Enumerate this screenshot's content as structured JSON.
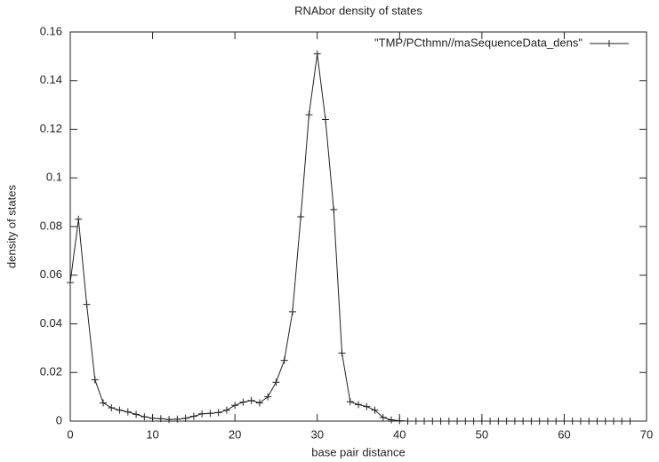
{
  "chart_data": {
    "type": "line",
    "title": "RNAbor density of states",
    "x_label": "base pair distance",
    "y_label": "density of states",
    "x": [
      0,
      1,
      2,
      3,
      4,
      5,
      6,
      7,
      8,
      9,
      10,
      11,
      12,
      13,
      14,
      15,
      16,
      17,
      18,
      19,
      20,
      21,
      22,
      23,
      24,
      25,
      26,
      27,
      28,
      29,
      30,
      31,
      32,
      33,
      34,
      35,
      36,
      37,
      38,
      39,
      40,
      41,
      42,
      43,
      44,
      45,
      46,
      47,
      48,
      49,
      50,
      51,
      52,
      53,
      54,
      55,
      56,
      57,
      58,
      59,
      60,
      61,
      62,
      63,
      64,
      65,
      66,
      67,
      68
    ],
    "series": [
      {
        "name": "\"TMP/PCthmn//maSequenceData_dens\"",
        "color": "#222222",
        "values": [
          0.057,
          0.083,
          0.048,
          0.017,
          0.0075,
          0.0055,
          0.0045,
          0.0038,
          0.0028,
          0.0018,
          0.0012,
          0.001,
          0.0007,
          0.0008,
          0.0012,
          0.002,
          0.003,
          0.0032,
          0.0035,
          0.0045,
          0.0065,
          0.0078,
          0.0085,
          0.0075,
          0.01,
          0.016,
          0.025,
          0.045,
          0.084,
          0.126,
          0.151,
          0.124,
          0.087,
          0.028,
          0.008,
          0.0068,
          0.006,
          0.0045,
          0.0015,
          0.0005,
          0.0002,
          0,
          0,
          0,
          0,
          0,
          0,
          0,
          0,
          0,
          0,
          0,
          0,
          0,
          0,
          0,
          0,
          0,
          0,
          0,
          0,
          0,
          0,
          0,
          0,
          0,
          0,
          0,
          0
        ]
      }
    ],
    "xlim": [
      0,
      70
    ],
    "xticks": [
      0,
      10,
      20,
      30,
      40,
      50,
      60,
      70
    ],
    "ylim": [
      0,
      0.16
    ],
    "yticks": [
      0,
      0.02,
      0.04,
      0.06,
      0.08,
      0.1,
      0.12,
      0.14,
      0.16
    ],
    "legend": "top-right"
  }
}
